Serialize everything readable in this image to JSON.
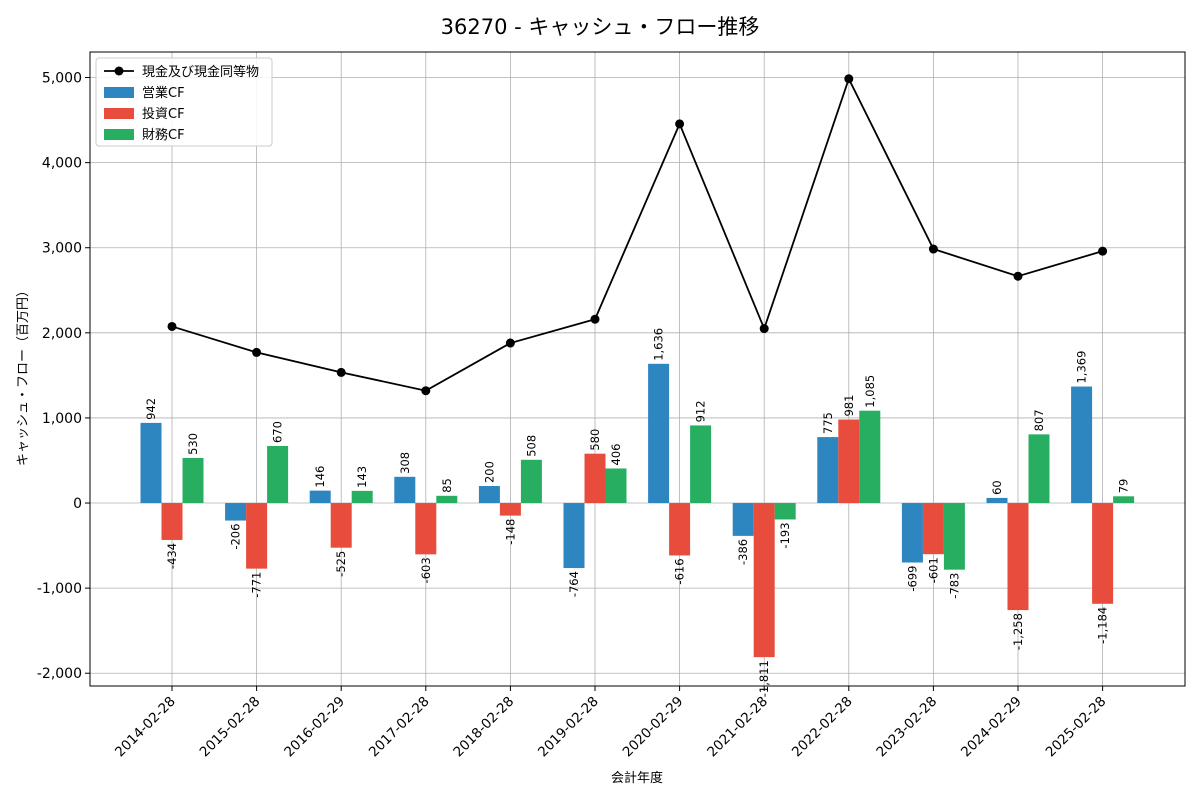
{
  "chart_data": {
    "type": "bar",
    "title": "36270 - キャッシュ・フロー推移",
    "xlabel": "会計年度",
    "ylabel": "キャッシュ・フロー（百万円）",
    "ylim": [
      -2150,
      5300
    ],
    "yticks": [
      -2000,
      -1000,
      0,
      1000,
      2000,
      3000,
      4000,
      5000
    ],
    "ytick_labels": [
      "-2,000",
      "-1,000",
      "0",
      "1,000",
      "2,000",
      "3,000",
      "4,000",
      "5,000"
    ],
    "grid": true,
    "legend_position": "top-left",
    "categories": [
      "2014-02-28",
      "2015-02-28",
      "2016-02-29",
      "2017-02-28",
      "2018-02-28",
      "2019-02-28",
      "2020-02-29",
      "2021-02-28",
      "2022-02-28",
      "2023-02-28",
      "2024-02-29",
      "2025-02-28"
    ],
    "series": [
      {
        "name": "営業CF",
        "kind": "bar",
        "color": "#2e86c1",
        "values": [
          942,
          -206,
          146,
          308,
          200,
          -764,
          1636,
          -386,
          775,
          -699,
          60,
          1369
        ],
        "labels": [
          "942",
          "-206",
          "146",
          "308",
          "200",
          "-764",
          "1,636",
          "-386",
          "775",
          "-699",
          "60",
          "1,369"
        ]
      },
      {
        "name": "投資CF",
        "kind": "bar",
        "color": "#e74c3c",
        "values": [
          -434,
          -771,
          -525,
          -603,
          -148,
          580,
          -616,
          -1811,
          981,
          -601,
          -1258,
          -1184
        ],
        "labels": [
          "-434",
          "-771",
          "-525",
          "-603",
          "-148",
          "580",
          "-616",
          "-1,811",
          "981",
          "-601",
          "-1,258",
          "-1,184"
        ]
      },
      {
        "name": "財務CF",
        "kind": "bar",
        "color": "#27ae60",
        "values": [
          530,
          670,
          143,
          85,
          508,
          406,
          912,
          -193,
          1085,
          -783,
          807,
          79
        ],
        "labels": [
          "530",
          "670",
          "143",
          "85",
          "508",
          "406",
          "912",
          "-193",
          "1,085",
          "-783",
          "807",
          "79"
        ]
      },
      {
        "name": "現金及び現金同等物",
        "kind": "line",
        "color": "#000000",
        "values": [
          2075,
          1770,
          1535,
          1320,
          1880,
          2160,
          4455,
          2050,
          4985,
          2985,
          2665,
          2960
        ]
      }
    ]
  }
}
